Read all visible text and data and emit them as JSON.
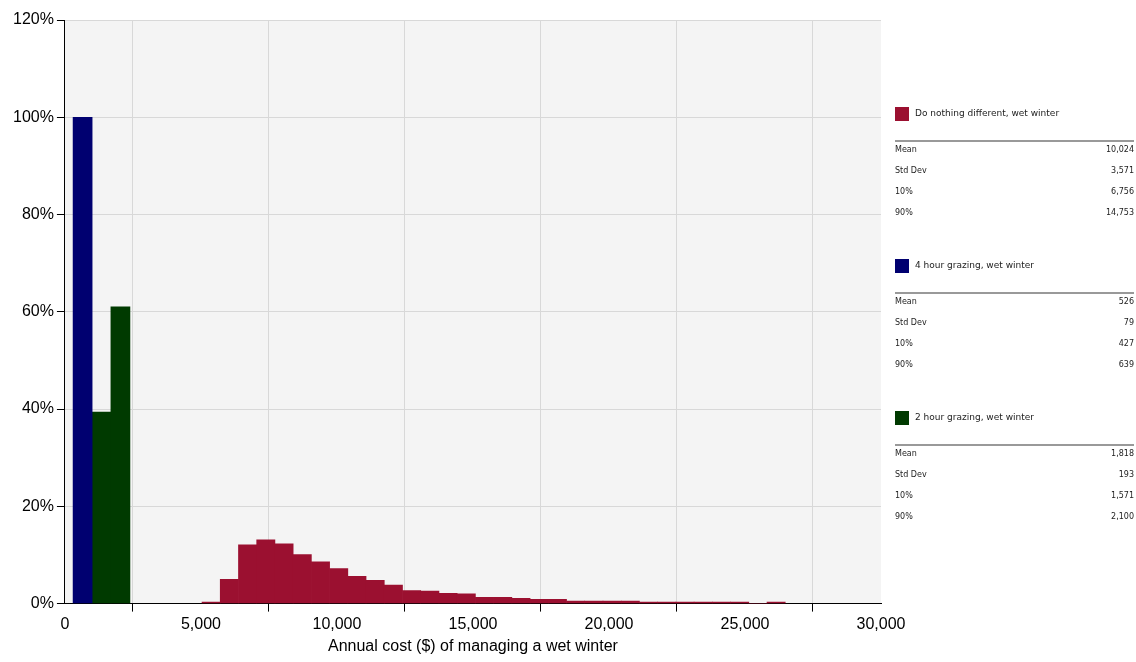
{
  "chart_data": {
    "type": "histogram",
    "xlabel": "Annual cost ($) of managing a wet winter",
    "bins": [
      300,
      1000,
      1700,
      2380,
      5040,
      5710,
      6380,
      7050,
      7720,
      8390,
      9060,
      9730,
      10400,
      11070,
      11740,
      12410,
      13080,
      13750,
      14420,
      15090,
      15760,
      16430,
      17100,
      17770,
      18440,
      19110,
      19780,
      20450,
      21120,
      21790,
      22460,
      23130,
      23800,
      24470,
      25140,
      25810,
      26480
    ],
    "series": [
      {
        "name": "Do nothing different, wet winter",
        "color": "#9b1030",
        "values": [
          null,
          null,
          null,
          null,
          0.3,
          5.0,
          12.1,
          13.1,
          12.3,
          10.1,
          8.6,
          7.2,
          5.6,
          4.8,
          3.8,
          2.7,
          2.6,
          2.1,
          2.0,
          1.3,
          1.3,
          1.1,
          0.9,
          0.9,
          0.5,
          0.5,
          0.5,
          0.5,
          0.3,
          0.3,
          0.3,
          0.3,
          0.3,
          0.3,
          0,
          0.3
        ]
      },
      {
        "name": "4 hour grazing, wet winter",
        "color": "#000070",
        "values": [
          100,
          null,
          null,
          null,
          null,
          null,
          null,
          null,
          null,
          null,
          null,
          null,
          null,
          null,
          null,
          null,
          null,
          null,
          null,
          null,
          null,
          null,
          null,
          null,
          null,
          null,
          null,
          null,
          null,
          null,
          null,
          null,
          null,
          null,
          null,
          null
        ]
      },
      {
        "name": "2 hour grazing, wet winter",
        "color": "#003a00",
        "values": [
          null,
          39.4,
          61,
          null,
          null,
          null,
          null,
          null,
          null,
          null,
          null,
          null,
          null,
          null,
          null,
          null,
          null,
          null,
          null,
          null,
          null,
          null,
          null,
          null,
          null,
          null,
          null,
          null,
          null,
          null,
          null,
          null,
          null,
          null,
          null,
          null
        ]
      }
    ],
    "xlim": [
      0,
      30000
    ],
    "xticks": [
      0,
      {
        "value": 5000,
        "label": "5,000"
      },
      {
        "value": 10000,
        "label": "10,000"
      },
      {
        "value": 15000,
        "label": "15,000"
      },
      {
        "value": 20000,
        "label": "20,000"
      },
      {
        "value": 25000,
        "label": "25,000"
      },
      {
        "value": 30000,
        "label": "30,000"
      }
    ],
    "ylim": [
      0,
      120
    ],
    "yticks": [
      {
        "value": 0,
        "label": "0%"
      },
      {
        "value": 20,
        "label": "20%"
      },
      {
        "value": 40,
        "label": "40%"
      },
      {
        "value": 60,
        "label": "60%"
      },
      {
        "value": 80,
        "label": "80%"
      },
      {
        "value": 100,
        "label": "100%"
      },
      {
        "value": 120,
        "label": "120%"
      }
    ],
    "grid": true,
    "legend": "right",
    "annotations": [
      "Mean",
      "10,024",
      "Std Dev",
      "3,571",
      "10%",
      "6,756",
      "90%",
      "14,753",
      "Mean",
      "526",
      "Std Dev",
      "79",
      "10%",
      "427",
      "90%",
      "639",
      "Mean",
      "1,818",
      "Std Dev",
      "193",
      "10%",
      "1,571",
      "90%",
      "2,100"
    ]
  }
}
